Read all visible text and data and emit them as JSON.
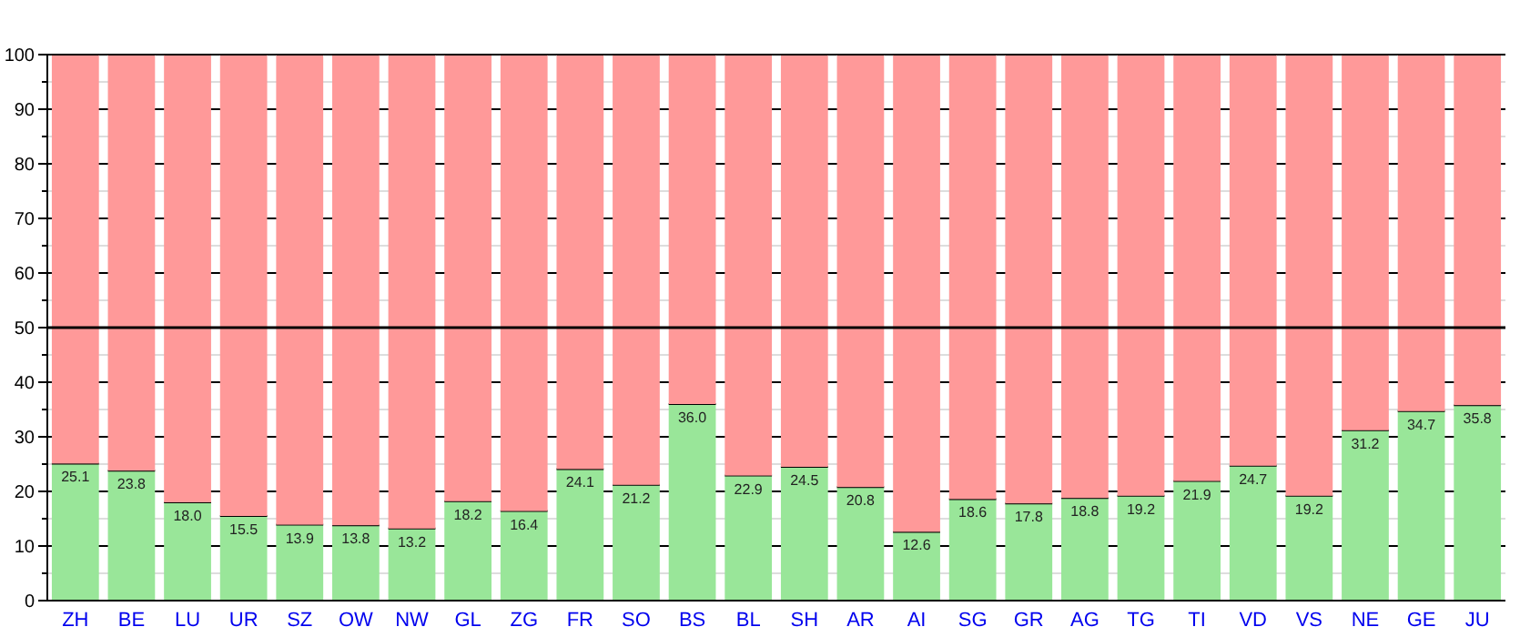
{
  "chart_data": {
    "type": "bar",
    "stacked": true,
    "categories": [
      "ZH",
      "BE",
      "LU",
      "UR",
      "SZ",
      "OW",
      "NW",
      "GL",
      "ZG",
      "FR",
      "SO",
      "BS",
      "BL",
      "SH",
      "AR",
      "AI",
      "SG",
      "GR",
      "AG",
      "TG",
      "TI",
      "VD",
      "VS",
      "NE",
      "GE",
      "JU"
    ],
    "series": [
      {
        "color": "#99e699",
        "values": [
          25.1,
          23.8,
          18.0,
          15.5,
          13.9,
          13.8,
          13.2,
          18.2,
          16.4,
          24.1,
          21.2,
          36.0,
          22.9,
          24.5,
          20.8,
          12.6,
          18.6,
          17.8,
          18.8,
          19.2,
          21.9,
          24.7,
          19.2,
          31.2,
          34.7,
          35.8
        ],
        "value_labels": [
          "25.1",
          "23.8",
          "18.0",
          "15.5",
          "13.9",
          "13.8",
          "13.2",
          "18.2",
          "16.4",
          "24.1",
          "21.2",
          "36.0",
          "22.9",
          "24.5",
          "20.8",
          "12.6",
          "18.6",
          "17.8",
          "18.8",
          "19.2",
          "21.9",
          "24.7",
          "19.2",
          "31.2",
          "34.7",
          "35.8"
        ]
      },
      {
        "color": "#ff9999",
        "values": [
          74.9,
          76.2,
          82.0,
          84.5,
          86.1,
          86.2,
          86.8,
          81.8,
          83.6,
          75.9,
          78.8,
          64.0,
          77.1,
          75.5,
          79.2,
          87.4,
          81.4,
          82.2,
          81.2,
          80.8,
          78.1,
          75.3,
          80.8,
          68.8,
          65.3,
          64.2
        ]
      }
    ],
    "ylim": [
      0,
      100
    ],
    "yticks": [
      0,
      {
        "value": 5,
        "label": null
      },
      10,
      {
        "value": 15,
        "label": null
      },
      20,
      {
        "value": 25,
        "label": null
      },
      30,
      {
        "value": 35,
        "label": null
      },
      40,
      {
        "value": 45,
        "label": null
      },
      50,
      {
        "value": 55,
        "label": null
      },
      60,
      {
        "value": 65,
        "label": null
      },
      70,
      {
        "value": 75,
        "label": null
      },
      80,
      {
        "value": 85,
        "label": null
      },
      90,
      {
        "value": 95,
        "label": null
      },
      100
    ],
    "grid": true,
    "ref_lines": [
      {
        "axis": "y",
        "value": 50,
        "color": "#000000"
      }
    ]
  }
}
